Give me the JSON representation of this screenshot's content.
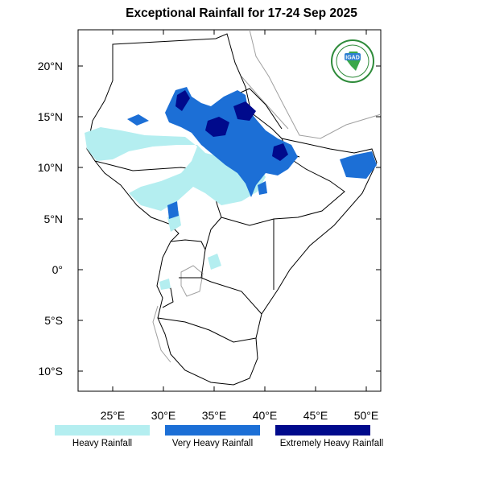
{
  "title": "Exceptional Rainfall for 17-24 Sep 2025",
  "lon_labels": [
    "25°E",
    "30°E",
    "35°E",
    "40°E",
    "45°E",
    "50°E"
  ],
  "lat_labels": [
    "20°N",
    "15°N",
    "10°N",
    "5°N",
    "0°",
    "5°S",
    "10°S"
  ],
  "legend": [
    {
      "label": "Heavy Rainfall",
      "color": "#b4eef0"
    },
    {
      "label": "Very Heavy Rainfall",
      "color": "#1c6fd6"
    },
    {
      "label": "Extremely Heavy Rainfall",
      "color": "#000a8c"
    }
  ],
  "logo": {
    "text": "IGAD",
    "ring_color": "#2e8b3a"
  }
}
